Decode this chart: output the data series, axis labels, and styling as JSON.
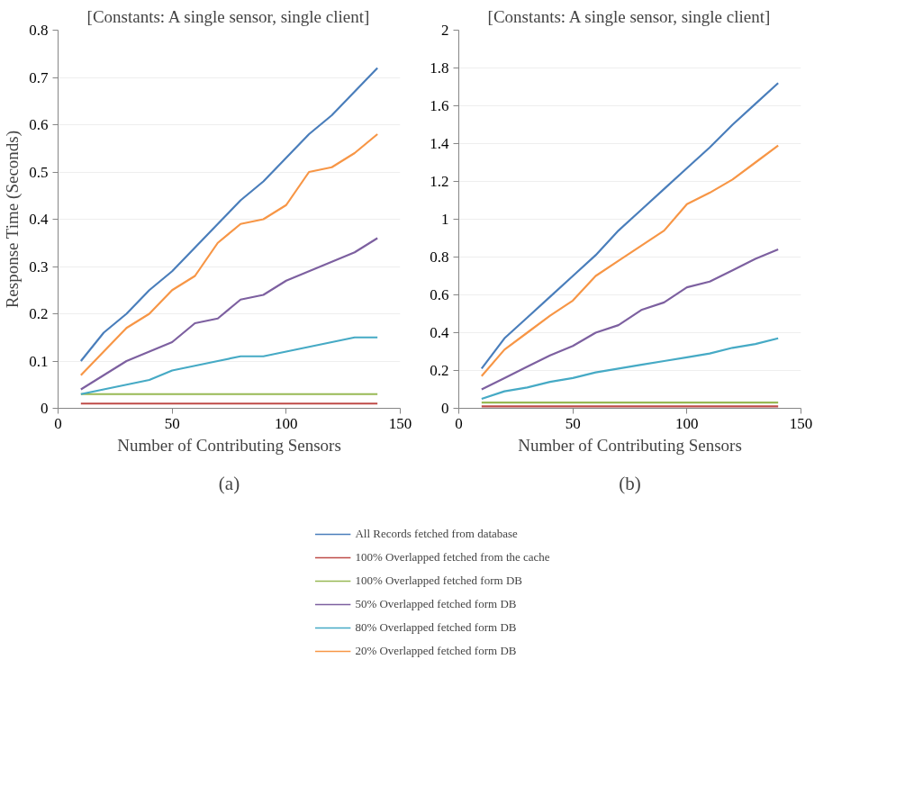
{
  "chart_data": [
    {
      "type": "line",
      "title": "[Constants: A single sensor, single client]",
      "xlabel": "Number of Contributing Sensors",
      "ylabel": "Response Time (Seconds)",
      "annotations": [
        "(a)"
      ],
      "x": [
        10,
        20,
        30,
        40,
        50,
        60,
        70,
        80,
        90,
        100,
        110,
        120,
        130,
        140
      ],
      "xlim": [
        0,
        150
      ],
      "xticks": [
        0,
        50,
        100,
        150
      ],
      "ylim": [
        0,
        0.8
      ],
      "yticks": [
        0,
        0.1,
        0.2,
        0.3,
        0.4,
        0.5,
        0.6,
        0.7,
        0.8
      ],
      "grid": "y",
      "legend": "bottom",
      "marker": "none",
      "line_style": "solid",
      "series": [
        {
          "name": "All Records fetched from database",
          "color": "#4a7ebb",
          "values": [
            0.1,
            0.16,
            0.2,
            0.25,
            0.29,
            0.34,
            0.39,
            0.44,
            0.48,
            0.53,
            0.58,
            0.62,
            0.67,
            0.72
          ]
        },
        {
          "name": "100% Overlapped fetched from the cache",
          "color": "#be4b48",
          "values": [
            0.01,
            0.01,
            0.01,
            0.01,
            0.01,
            0.01,
            0.01,
            0.01,
            0.01,
            0.01,
            0.01,
            0.01,
            0.01,
            0.01
          ]
        },
        {
          "name": "100% Overlapped fetched form DB",
          "color": "#98b954",
          "values": [
            0.03,
            0.03,
            0.03,
            0.03,
            0.03,
            0.03,
            0.03,
            0.03,
            0.03,
            0.03,
            0.03,
            0.03,
            0.03,
            0.03
          ]
        },
        {
          "name": "50% Overlapped fetched form DB",
          "color": "#7d60a0",
          "values": [
            0.04,
            0.07,
            0.1,
            0.12,
            0.14,
            0.18,
            0.19,
            0.23,
            0.24,
            0.27,
            0.29,
            0.31,
            0.33,
            0.36
          ]
        },
        {
          "name": "80% Overlapped fetched form DB",
          "color": "#46aac5",
          "values": [
            0.03,
            0.04,
            0.05,
            0.06,
            0.08,
            0.09,
            0.1,
            0.11,
            0.11,
            0.12,
            0.13,
            0.14,
            0.15,
            0.15
          ]
        },
        {
          "name": "20% Overlapped fetched form DB",
          "color": "#f79646",
          "values": [
            0.07,
            0.12,
            0.17,
            0.2,
            0.25,
            0.28,
            0.35,
            0.39,
            0.4,
            0.43,
            0.5,
            0.51,
            0.54,
            0.58
          ]
        }
      ]
    },
    {
      "type": "line",
      "title": "[Constants: A single sensor, single client]",
      "xlabel": "Number of Contributing Sensors",
      "annotations": [
        "(b)"
      ],
      "x": [
        10,
        20,
        30,
        40,
        50,
        60,
        70,
        80,
        90,
        100,
        110,
        120,
        130,
        140
      ],
      "xlim": [
        0,
        150
      ],
      "xticks": [
        0,
        50,
        100,
        150
      ],
      "ylim": [
        0,
        2
      ],
      "yticks": [
        0,
        0.2,
        0.4,
        0.6,
        0.8,
        1,
        1.2,
        1.4,
        1.6,
        1.8,
        2
      ],
      "grid": "y",
      "legend": "bottom",
      "marker": "none",
      "line_style": "solid",
      "series": [
        {
          "name": "All Records fetched from database",
          "color": "#4a7ebb",
          "values": [
            0.21,
            0.37,
            0.48,
            0.59,
            0.7,
            0.81,
            0.94,
            1.05,
            1.16,
            1.27,
            1.38,
            1.5,
            1.61,
            1.72
          ]
        },
        {
          "name": "100% Overlapped fetched from the cache",
          "color": "#be4b48",
          "values": [
            0.01,
            0.01,
            0.01,
            0.01,
            0.01,
            0.01,
            0.01,
            0.01,
            0.01,
            0.01,
            0.01,
            0.01,
            0.01,
            0.01
          ]
        },
        {
          "name": "100% Overlapped fetched form DB",
          "color": "#98b954",
          "values": [
            0.03,
            0.03,
            0.03,
            0.03,
            0.03,
            0.03,
            0.03,
            0.03,
            0.03,
            0.03,
            0.03,
            0.03,
            0.03,
            0.03
          ]
        },
        {
          "name": "50% Overlapped fetched form DB",
          "color": "#7d60a0",
          "values": [
            0.1,
            0.16,
            0.22,
            0.28,
            0.33,
            0.4,
            0.44,
            0.52,
            0.56,
            0.64,
            0.67,
            0.73,
            0.79,
            0.84
          ]
        },
        {
          "name": "80% Overlapped fetched form DB",
          "color": "#46aac5",
          "values": [
            0.05,
            0.09,
            0.11,
            0.14,
            0.16,
            0.19,
            0.21,
            0.23,
            0.25,
            0.27,
            0.29,
            0.32,
            0.34,
            0.37
          ]
        },
        {
          "name": "20% Overlapped fetched form DB",
          "color": "#f79646",
          "values": [
            0.17,
            0.31,
            0.4,
            0.49,
            0.57,
            0.7,
            0.78,
            0.86,
            0.94,
            1.08,
            1.14,
            1.21,
            1.3,
            1.39
          ]
        }
      ]
    }
  ]
}
